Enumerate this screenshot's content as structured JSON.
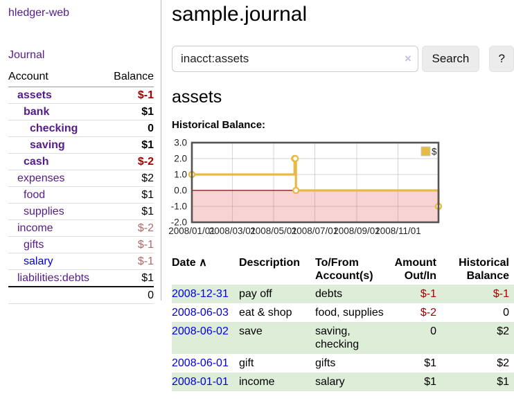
{
  "app": {
    "brand": "hledger-web"
  },
  "sidebar": {
    "nav_journal": "Journal",
    "accounts": {
      "header_account": "Account",
      "header_balance": "Balance",
      "rows": [
        {
          "account": "assets",
          "balance": "$-1",
          "depth": 1,
          "matched": true,
          "balance_tone": "negative-strong"
        },
        {
          "account": "bank",
          "balance": "$1",
          "depth": 2,
          "matched": true,
          "balance_tone": "normal"
        },
        {
          "account": "checking",
          "balance": "0",
          "depth": 3,
          "matched": true,
          "balance_tone": "normal"
        },
        {
          "account": "saving",
          "balance": "$1",
          "depth": 3,
          "matched": true,
          "balance_tone": "normal"
        },
        {
          "account": "cash",
          "balance": "$-2",
          "depth": 2,
          "matched": true,
          "balance_tone": "negative-strong"
        },
        {
          "account": "expenses",
          "balance": "$2",
          "depth": 1,
          "matched": false,
          "balance_tone": "normal"
        },
        {
          "account": "food",
          "balance": "$1",
          "depth": 2,
          "matched": false,
          "balance_tone": "normal"
        },
        {
          "account": "supplies",
          "balance": "$1",
          "depth": 2,
          "matched": false,
          "balance_tone": "normal"
        },
        {
          "account": "income",
          "balance": "$-2",
          "depth": 1,
          "matched": false,
          "balance_tone": "negative-muted"
        },
        {
          "account": "gifts",
          "balance": "$-1",
          "depth": 2,
          "matched": false,
          "balance_tone": "negative-muted"
        },
        {
          "account": "salary",
          "balance": "$-1",
          "depth": 2,
          "matched": false,
          "balance_tone": "negative-muted"
        },
        {
          "account": "liabilities:debts",
          "balance": "$1",
          "depth": 1,
          "matched": false,
          "balance_tone": "normal"
        }
      ],
      "total": "0"
    }
  },
  "main": {
    "title": "sample.journal",
    "search": {
      "value": "inacct:assets",
      "clear": "×",
      "search_button": "Search",
      "help_button": "?"
    },
    "heading": "assets",
    "chart_label": "Historical Balance:"
  },
  "chart_data": {
    "type": "line",
    "title": "Historical Balance:",
    "series": [
      {
        "name": "$",
        "color": "#e6ba45",
        "step": true,
        "points": [
          {
            "date": "2008-01-01",
            "value": 1
          },
          {
            "date": "2008-06-01",
            "value": 2
          },
          {
            "date": "2008-06-02",
            "value": 2
          },
          {
            "date": "2008-06-03",
            "value": 0
          },
          {
            "date": "2008-12-31",
            "value": -1
          }
        ]
      }
    ],
    "xlim": [
      "2008-01-01",
      "2008-12-31"
    ],
    "ylim": [
      -2,
      3
    ],
    "yticks": [
      3.0,
      2.0,
      1.0,
      0.0,
      -1.0,
      -2.0
    ],
    "xticks": [
      "2008/01/01",
      "2008/03/01",
      "2008/05/01",
      "2008/07/01",
      "2008/09/01",
      "2008/11/01"
    ],
    "legend": [
      "$"
    ],
    "legend_position": "top-right",
    "grid": true,
    "negative_region_color": "#f9d3d3",
    "zero_line_color": "#8b0000"
  },
  "register": {
    "headers": [
      "Date",
      "Description",
      "To/From Account(s)",
      "Amount Out/In",
      "Historical Balance"
    ],
    "sort_indicator": "∧",
    "rows": [
      {
        "date": "2008-12-31",
        "description": "pay off",
        "accounts": "debts",
        "amount": "$-1",
        "balance": "$-1"
      },
      {
        "date": "2008-06-03",
        "description": "eat & shop",
        "accounts": "food, supplies",
        "amount": "$-2",
        "balance": "0"
      },
      {
        "date": "2008-06-02",
        "description": "save",
        "accounts": "saving, checking",
        "amount": "0",
        "balance": "$2"
      },
      {
        "date": "2008-06-01",
        "description": "gift",
        "accounts": "gifts",
        "amount": "$1",
        "balance": "$2"
      },
      {
        "date": "2008-01-01",
        "description": "income",
        "accounts": "salary",
        "amount": "$1",
        "balance": "$1"
      }
    ]
  }
}
